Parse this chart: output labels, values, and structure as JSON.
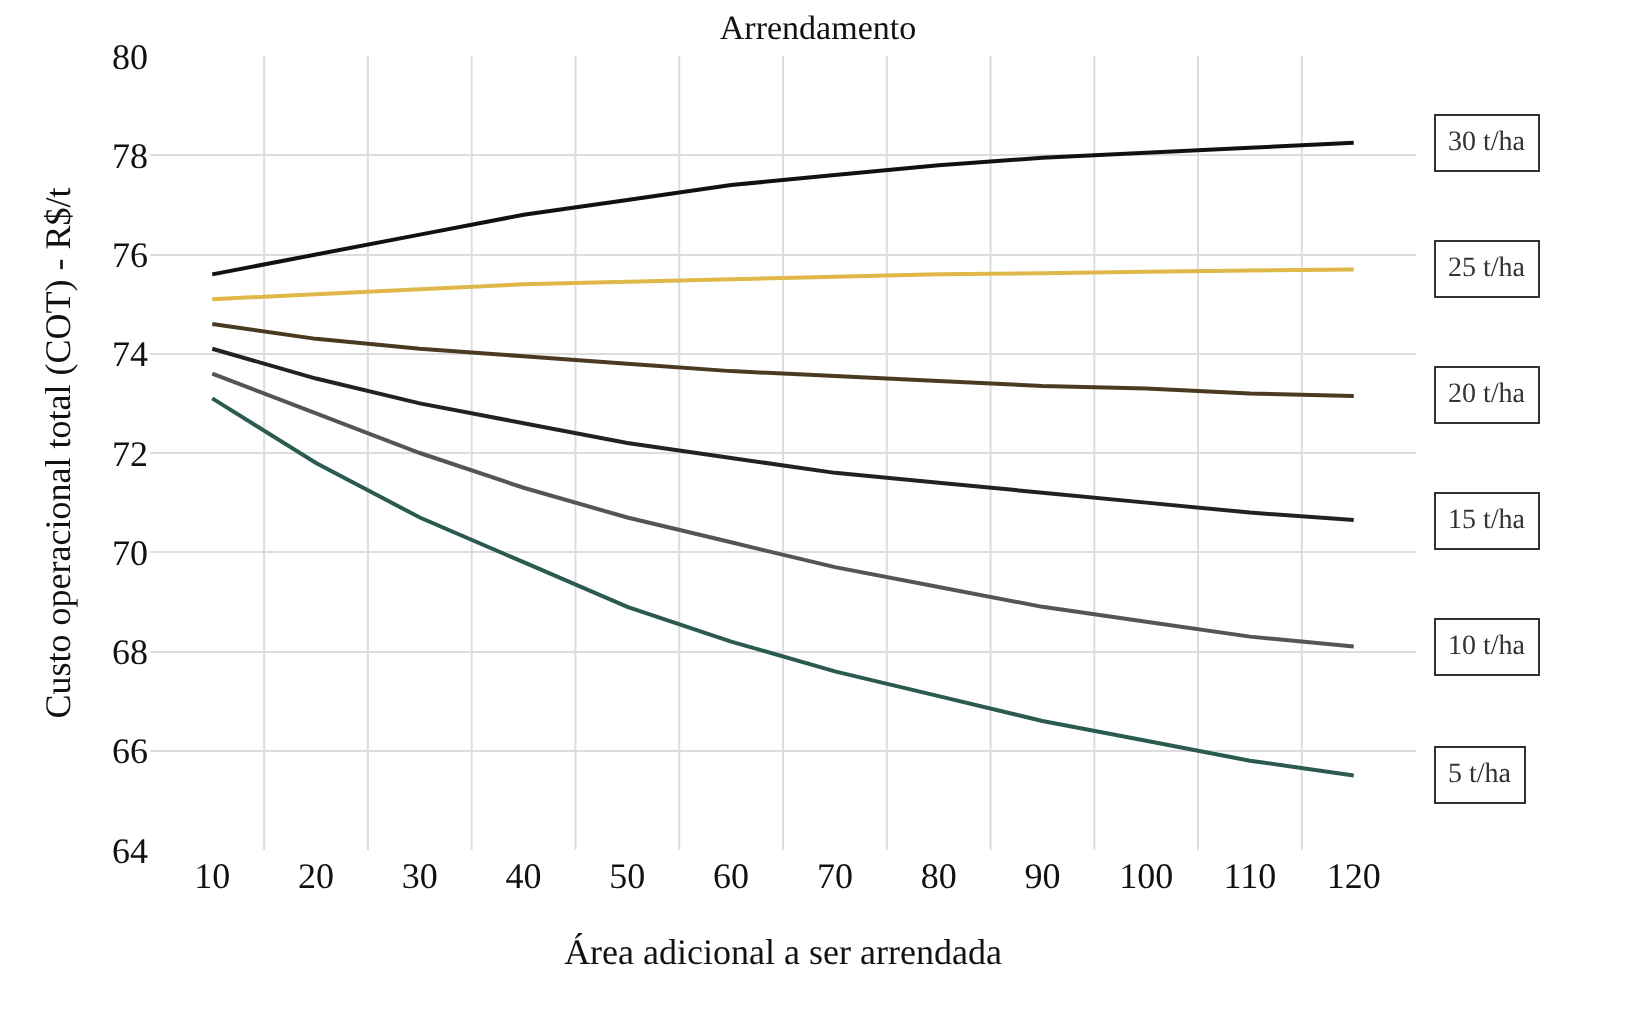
{
  "chart_data": {
    "type": "line",
    "title": "Arrendamento",
    "xlabel": "Área adicional a ser arrendada",
    "ylabel": "Custo operacional total (COT) - R$/t",
    "categories": [
      "10",
      "20",
      "30",
      "40",
      "50",
      "60",
      "70",
      "80",
      "90",
      "100",
      "110",
      "120"
    ],
    "ylim": [
      64,
      80
    ],
    "yticks": [
      64,
      66,
      68,
      70,
      72,
      74,
      76,
      78,
      80
    ],
    "grid": true,
    "legend": false,
    "marker": "none",
    "line_style": "solid",
    "series": [
      {
        "name": "30 t/ha",
        "color": "#111111",
        "values": [
          75.6,
          76.0,
          76.4,
          76.8,
          77.1,
          77.4,
          77.6,
          77.8,
          77.95,
          78.05,
          78.15,
          78.25
        ]
      },
      {
        "name": "25 t/ha",
        "color": "#e0b84a",
        "values": [
          75.1,
          75.2,
          75.3,
          75.4,
          75.45,
          75.5,
          75.55,
          75.6,
          75.62,
          75.65,
          75.68,
          75.7
        ]
      },
      {
        "name": "20 t/ha",
        "color": "#4a3a20",
        "values": [
          74.6,
          74.3,
          74.1,
          73.95,
          73.8,
          73.65,
          73.55,
          73.45,
          73.35,
          73.3,
          73.2,
          73.15
        ]
      },
      {
        "name": "15 t/ha",
        "color": "#222222",
        "values": [
          74.1,
          73.5,
          73.0,
          72.6,
          72.2,
          71.9,
          71.6,
          71.4,
          71.2,
          71.0,
          70.8,
          70.65
        ]
      },
      {
        "name": "10 t/ha",
        "color": "#555555",
        "values": [
          73.6,
          72.8,
          72.0,
          71.3,
          70.7,
          70.2,
          69.7,
          69.3,
          68.9,
          68.6,
          68.3,
          68.1
        ]
      },
      {
        "name": "5 t/ha",
        "color": "#2a5a50",
        "values": [
          73.1,
          71.8,
          70.7,
          69.8,
          68.9,
          68.2,
          67.6,
          67.1,
          66.6,
          66.2,
          65.8,
          65.5
        ]
      }
    ]
  }
}
